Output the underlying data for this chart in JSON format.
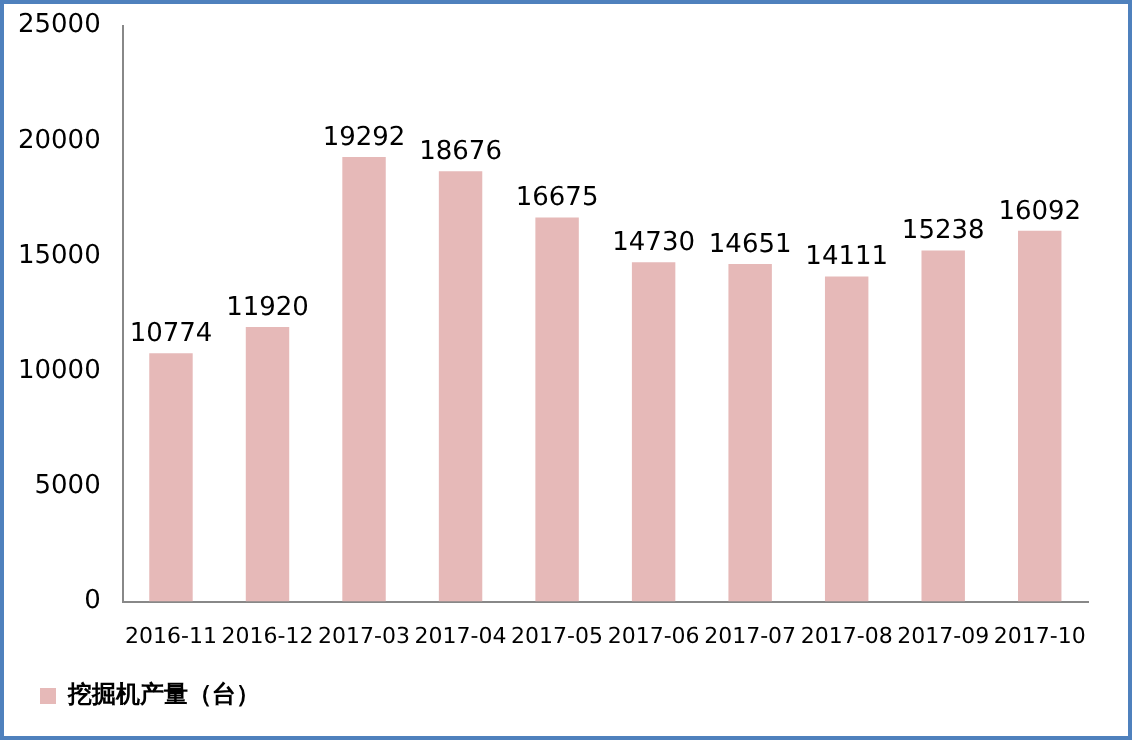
{
  "chart_data": {
    "type": "bar",
    "categories": [
      "2016-11",
      "2016-12",
      "2017-03",
      "2017-04",
      "2017-05",
      "2017-06",
      "2017-07",
      "2017-08",
      "2017-09",
      "2017-10"
    ],
    "series": [
      {
        "name": "挖掘机产量（台）",
        "color": "#e6b9b8",
        "values": [
          10774,
          11920,
          19292,
          18676,
          16675,
          14730,
          14651,
          14111,
          15238,
          16092
        ]
      }
    ],
    "ylim": [
      0,
      25000
    ],
    "yticks": [
      0,
      5000,
      10000,
      15000,
      20000,
      25000
    ],
    "grid": false,
    "legend": "bottom",
    "data_labels": true
  }
}
